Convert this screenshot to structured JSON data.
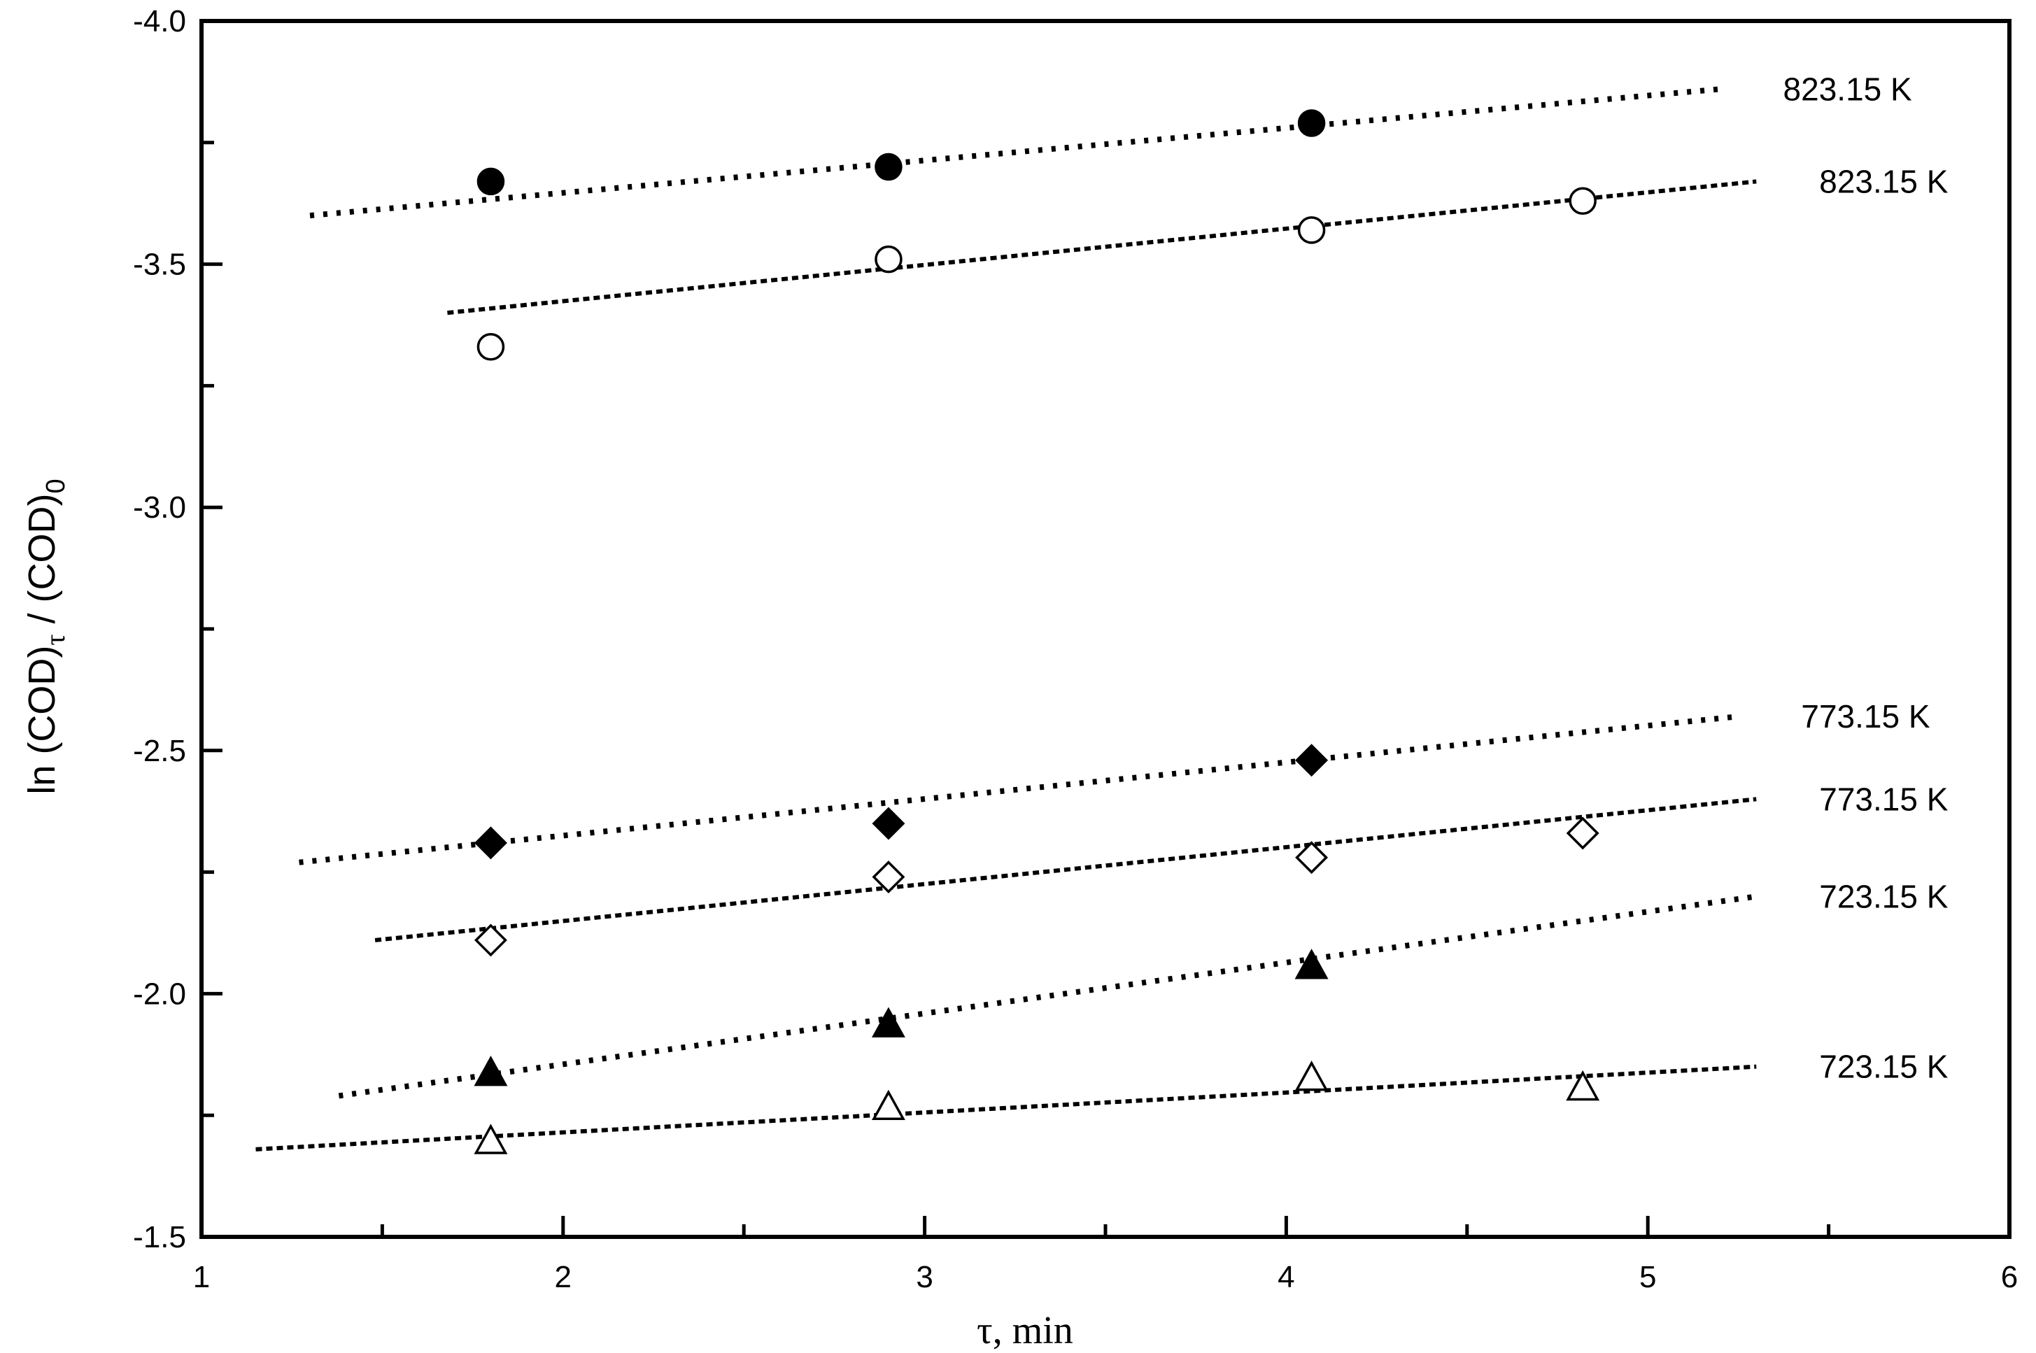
{
  "chart_data": {
    "type": "scatter",
    "xlabel": {
      "symbol": "τ",
      "unit": "min"
    },
    "ylabel": {
      "prefix": "ln (COD)",
      "sub1": "τ",
      "middle": " / (COD)",
      "sub2": "0"
    },
    "xlim": [
      1,
      6
    ],
    "ylim": [
      -1.5,
      -4.0
    ],
    "x_ticks": [
      "1",
      "2",
      "3",
      "4",
      "5",
      "6"
    ],
    "y_ticks": [
      "-4.0",
      "-3.5",
      "-3.0",
      "-2.5",
      "-2.0",
      "-1.5"
    ],
    "grid": false,
    "series": [
      {
        "label": "823.15 K",
        "marker": "filled-circle",
        "x": [
          1.8,
          2.9,
          4.07
        ],
        "y": [
          -3.67,
          -3.7,
          -3.79
        ],
        "fit": {
          "x": [
            1.3,
            5.2
          ],
          "y": [
            -3.6,
            -3.86
          ],
          "style": "dotted"
        }
      },
      {
        "label": "823.15 K",
        "marker": "open-circle",
        "x": [
          1.8,
          2.9,
          4.07,
          4.82
        ],
        "y": [
          -3.33,
          -3.51,
          -3.57,
          -3.63
        ],
        "fit": {
          "x": [
            1.68,
            5.3
          ],
          "y": [
            -3.4,
            -3.67
          ],
          "style": "dashed"
        }
      },
      {
        "label": "773.15 K",
        "marker": "filled-diamond",
        "x": [
          1.8,
          2.9,
          4.07
        ],
        "y": [
          -2.31,
          -2.35,
          -2.48
        ],
        "fit": {
          "x": [
            1.27,
            5.25
          ],
          "y": [
            -2.27,
            -2.57
          ],
          "style": "dotted"
        }
      },
      {
        "label": "773.15 K",
        "marker": "open-diamond",
        "x": [
          1.8,
          2.9,
          4.07,
          4.82
        ],
        "y": [
          -2.11,
          -2.24,
          -2.28,
          -2.33
        ],
        "fit": {
          "x": [
            1.48,
            5.3
          ],
          "y": [
            -2.11,
            -2.4
          ],
          "style": "dashed"
        }
      },
      {
        "label": "723.15 K",
        "marker": "filled-triangle",
        "x": [
          1.8,
          2.9,
          4.07
        ],
        "y": [
          -1.84,
          -1.94,
          -2.06
        ],
        "fit": {
          "x": [
            1.38,
            5.3
          ],
          "y": [
            -1.79,
            -2.2
          ],
          "style": "dotted"
        }
      },
      {
        "label": "723.15 K",
        "marker": "open-triangle",
        "x": [
          1.8,
          2.9,
          4.07,
          4.82
        ],
        "y": [
          -1.7,
          -1.77,
          -1.83,
          -1.81
        ],
        "fit": {
          "x": [
            1.15,
            5.3
          ],
          "y": [
            -1.68,
            -1.85
          ],
          "style": "dashed"
        }
      }
    ]
  }
}
